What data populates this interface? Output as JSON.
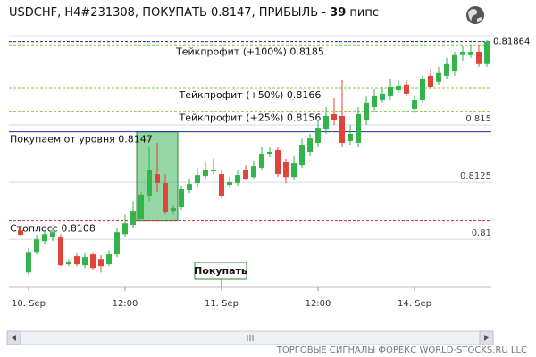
{
  "chart_data": {
    "type": "candlestick",
    "title": "USDCHF, H4#231308, ПОКУПАТЬ 0.8147, ПРИБЫЛЬ - ",
    "profit": 39,
    "profit_unit": " пипс",
    "categories": [
      null,
      "10. Sep",
      null,
      null,
      null,
      null,
      null,
      null,
      null,
      null,
      null,
      null,
      null,
      "12:00",
      null,
      null,
      null,
      null,
      null,
      null,
      null,
      null,
      null,
      null,
      null,
      "11. Sep",
      null,
      null,
      null,
      null,
      null,
      null,
      null,
      null,
      null,
      null,
      null,
      "12:00",
      null,
      null,
      null,
      null,
      null,
      null,
      null,
      null,
      null,
      null,
      null,
      "14. Sep",
      null,
      null,
      null,
      null,
      null,
      null,
      null,
      null,
      null
    ],
    "open": [
      0.81039,
      0.80855,
      0.80945,
      0.80992,
      0.81008,
      0.81008,
      0.80891,
      0.80926,
      0.80887,
      0.80934,
      0.80914,
      0.80891,
      0.80934,
      0.81023,
      0.81063,
      0.8109,
      0.81188,
      0.81285,
      0.81246,
      0.81125,
      0.81141,
      0.81215,
      0.81246,
      0.81277,
      0.81297,
      0.81285,
      0.81238,
      0.81246,
      0.81305,
      0.81273,
      0.81313,
      0.81375,
      0.81391,
      0.81336,
      0.81273,
      0.81324,
      0.81383,
      0.81422,
      0.8148,
      0.81547,
      0.81539,
      0.8143,
      0.81422,
      0.8152,
      0.81578,
      0.81609,
      0.81625,
      0.81652,
      0.81676,
      0.8157,
      0.81609,
      0.81715,
      0.81688,
      0.81715,
      0.81734,
      0.81805,
      0.81805,
      0.8182,
      0.81766
    ],
    "high": [
      0.81047,
      0.80961,
      0.8102,
      0.81039,
      0.81047,
      0.81023,
      0.80914,
      0.80938,
      0.80938,
      0.80941,
      0.8093,
      0.80953,
      0.81047,
      0.81109,
      0.81168,
      0.81207,
      0.81402,
      0.81422,
      0.81285,
      0.81148,
      0.81234,
      0.81266,
      0.81313,
      0.81336,
      0.81352,
      0.81305,
      0.81273,
      0.81305,
      0.81324,
      0.81344,
      0.81402,
      0.81402,
      0.81402,
      0.81352,
      0.81363,
      0.81441,
      0.81461,
      0.8152,
      0.81578,
      0.81617,
      0.81695,
      0.815,
      0.81578,
      0.81625,
      0.81656,
      0.81664,
      0.81703,
      0.81695,
      0.81695,
      0.81625,
      0.81715,
      0.81742,
      0.81754,
      0.81793,
      0.8182,
      0.81844,
      0.81852,
      0.81852,
      0.81871
    ],
    "low": [
      0.81016,
      0.80844,
      0.80934,
      0.8098,
      0.80992,
      0.80883,
      0.80883,
      0.80883,
      0.80875,
      0.80867,
      0.80855,
      0.80883,
      0.80922,
      0.81012,
      0.81051,
      0.81078,
      0.81168,
      0.81207,
      0.81109,
      0.81109,
      0.81129,
      0.81203,
      0.81227,
      0.81266,
      0.81285,
      0.8118,
      0.81227,
      0.81234,
      0.81258,
      0.81266,
      0.81305,
      0.81359,
      0.81273,
      0.81246,
      0.81258,
      0.81313,
      0.81363,
      0.81402,
      0.81461,
      0.815,
      0.81402,
      0.81414,
      0.81402,
      0.815,
      0.81559,
      0.81598,
      0.81609,
      0.81641,
      0.81625,
      0.81551,
      0.81598,
      0.81656,
      0.81676,
      0.81703,
      0.81715,
      0.81781,
      0.81793,
      0.81754,
      0.81754
    ],
    "close": [
      0.8102,
      0.80945,
      0.81,
      0.81023,
      0.81031,
      0.80887,
      0.80902,
      0.80891,
      0.80922,
      0.80875,
      0.80883,
      0.80934,
      0.81031,
      0.8107,
      0.81125,
      0.81195,
      0.81305,
      0.81246,
      0.81121,
      0.81137,
      0.81219,
      0.81242,
      0.81281,
      0.81305,
      0.81305,
      0.81188,
      0.8125,
      0.81281,
      0.81266,
      0.8132,
      0.81371,
      0.81383,
      0.81285,
      0.81273,
      0.81332,
      0.81414,
      0.81441,
      0.81488,
      0.81539,
      0.8152,
      0.81422,
      0.81461,
      0.81547,
      0.81598,
      0.81625,
      0.81637,
      0.81664,
      0.81672,
      0.81637,
      0.81609,
      0.81703,
      0.81664,
      0.81727,
      0.81766,
      0.81805,
      0.8182,
      0.8182,
      0.81766,
      0.81864
    ],
    "up_color": "#34b34a",
    "down_color": "#e0443a",
    "ylim": [
      0.8079,
      0.8189
    ],
    "yticks": [
      0.81,
      0.8125,
      0.815
    ],
    "grid": true,
    "current_price": 0.81864,
    "levels": [
      {
        "label": "Тейкпрофит (+100%) 0.8185",
        "value": 0.8185,
        "color": "#8dc63f"
      },
      {
        "label": "Тейкпрофит (+50%) 0.8166",
        "value": 0.8166,
        "color": "#8dc63f"
      },
      {
        "label": "Тейкпрофит (+25%) 0.8156",
        "value": 0.8156,
        "color": "#8dc63f"
      },
      {
        "label": "Покупаем от уровня 0.8147",
        "value": 0.8147,
        "color": "#1f2fa8"
      },
      {
        "label": "Стоплосс 0.8108",
        "value": 0.8108,
        "color": "#d42a2a"
      }
    ],
    "signal_label": "Покупать",
    "footer": "ТОРГОВЫЕ СИГНАЛЫ ФОРЕКС WORLD-STOCKS.RU LLC"
  }
}
